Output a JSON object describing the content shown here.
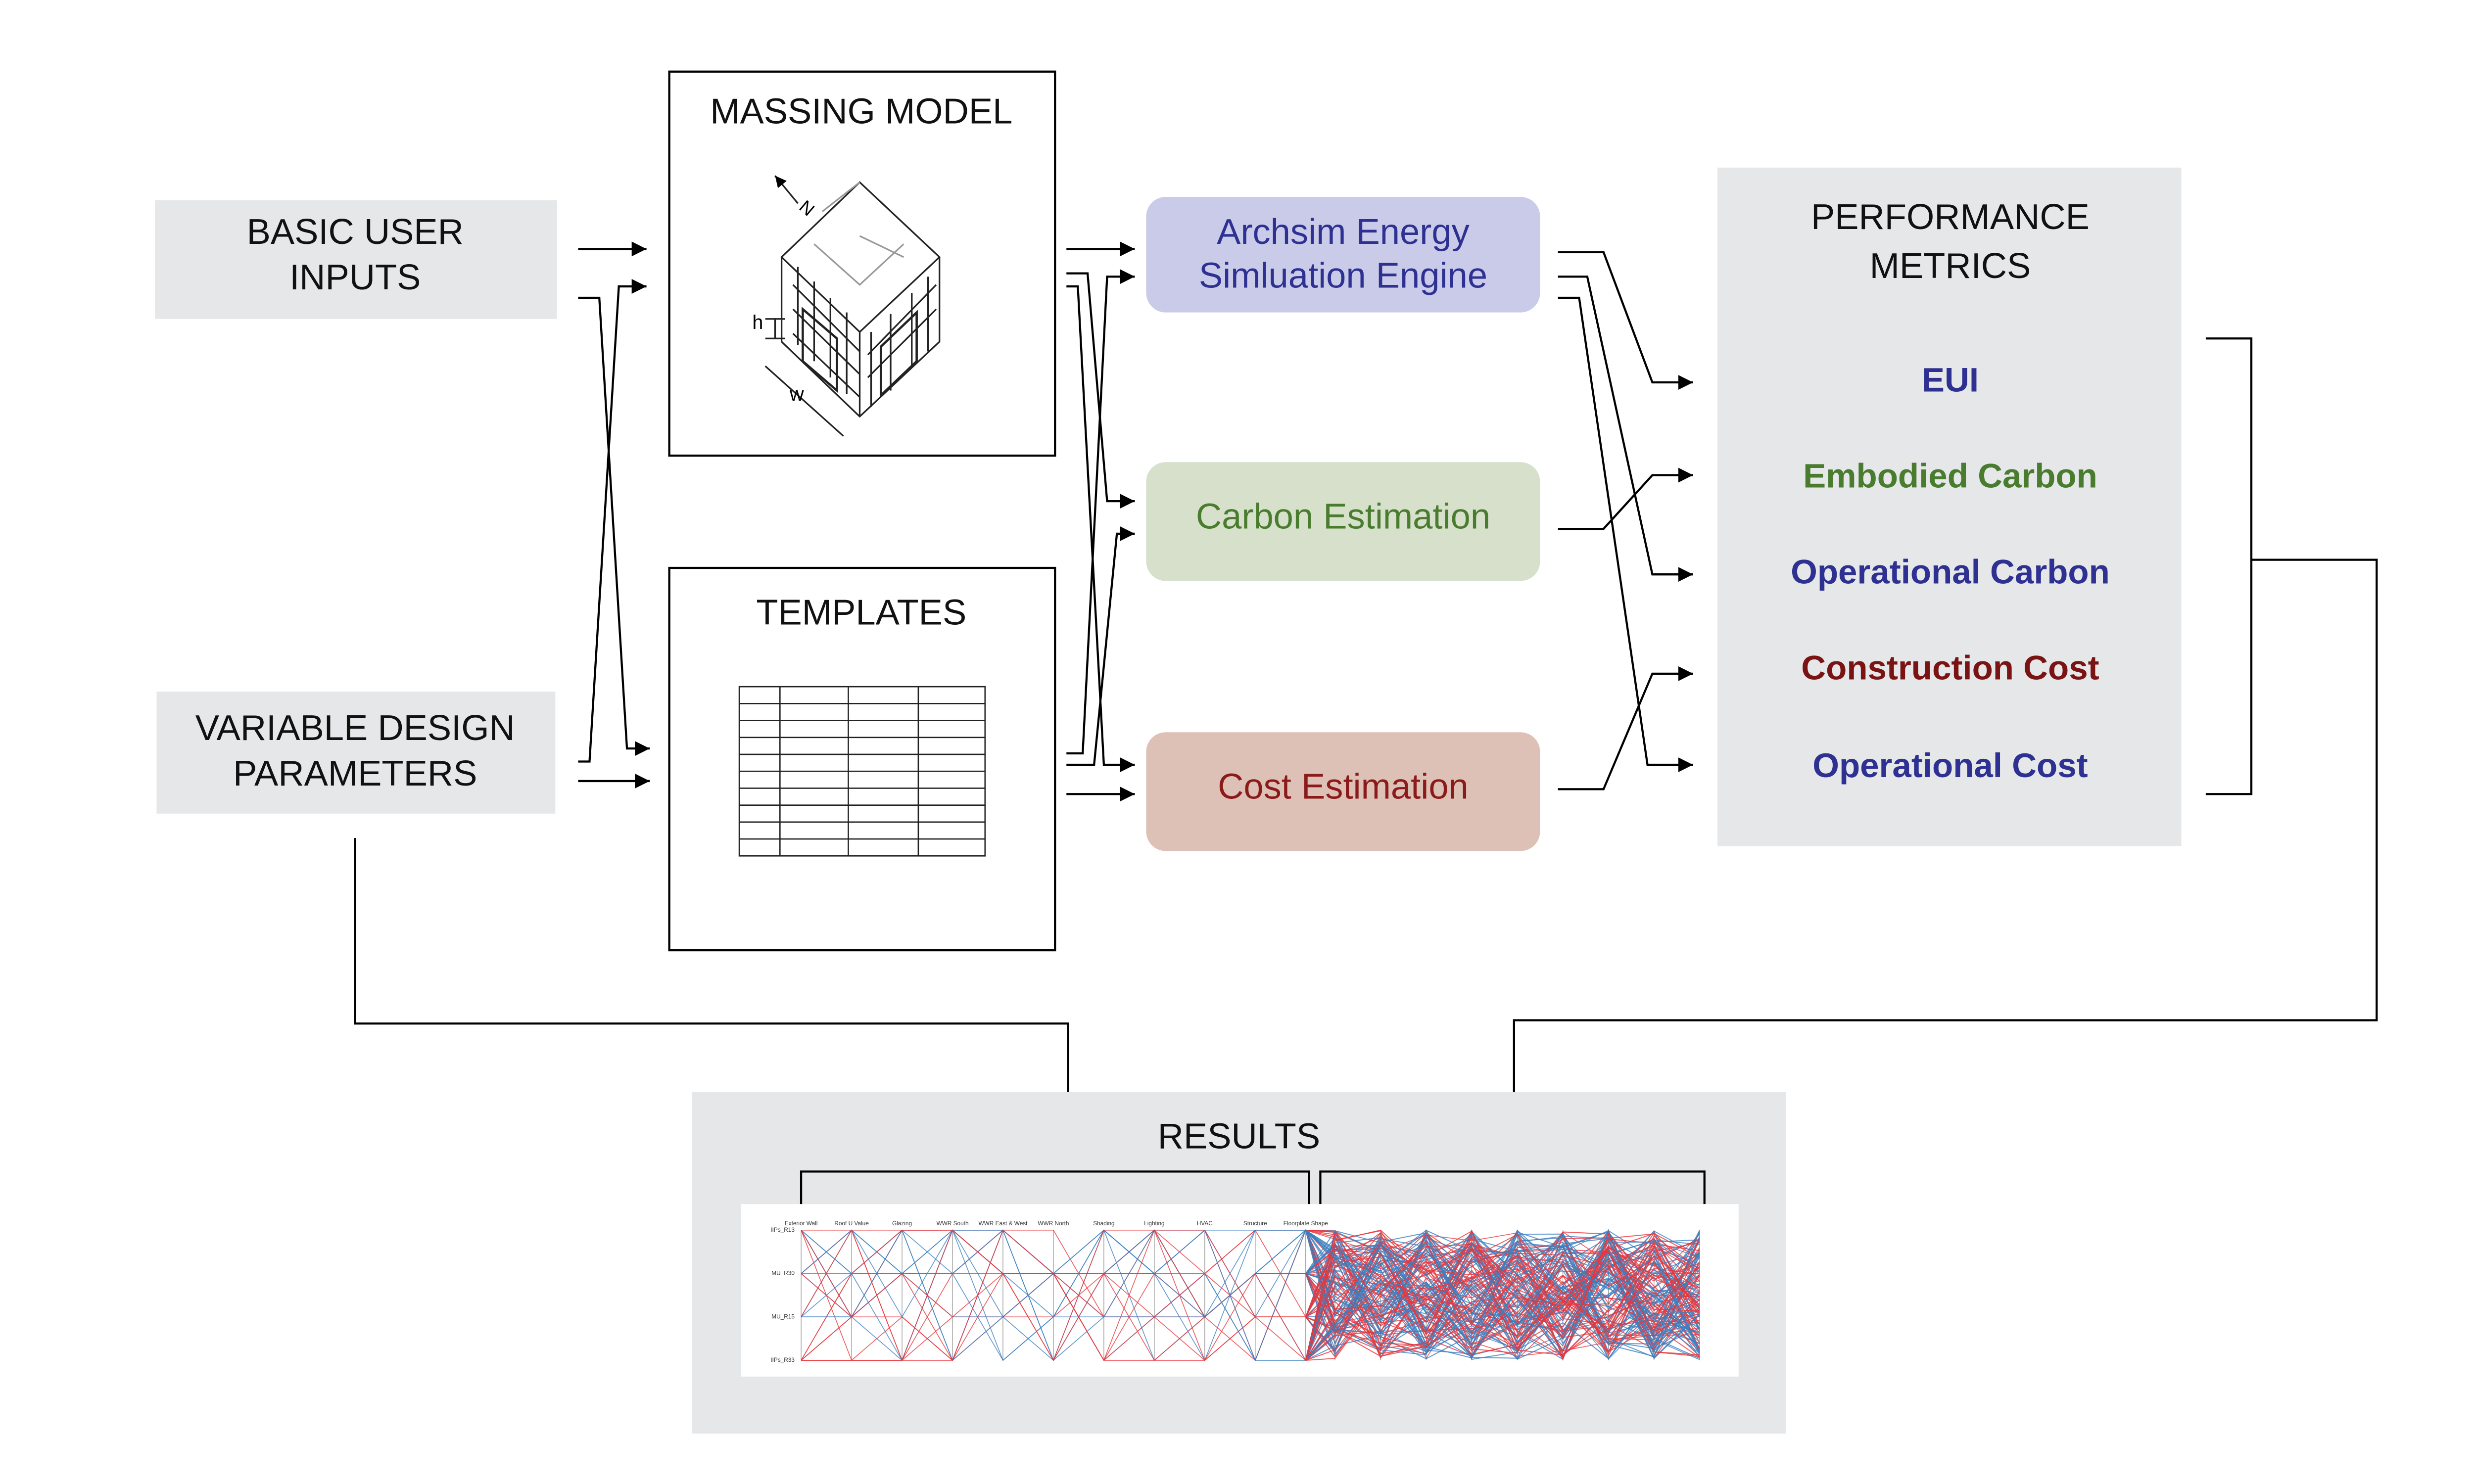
{
  "inputs": {
    "basic": [
      "BASIC USER",
      "INPUTS"
    ],
    "variable": [
      "VARIABLE DESIGN",
      "PARAMETERS"
    ]
  },
  "massing": {
    "title": "MASSING MODEL",
    "labels": [
      "N",
      "h",
      "w"
    ]
  },
  "templates": {
    "title": "TEMPLATES"
  },
  "engines": [
    [
      "Archsim Energy",
      "Simluation Engine"
    ],
    [
      "Carbon Estimation"
    ],
    [
      "Cost Estimation"
    ]
  ],
  "performance": {
    "title": [
      "PERFORMANCE",
      "METRICS"
    ],
    "metrics": [
      "EUI",
      "Embodied Carbon",
      "Operational Carbon",
      "Construction Cost",
      "Operational Cost"
    ]
  },
  "results": {
    "title": "RESULTS",
    "axes": [
      "Exterior Wall",
      "Roof U Value",
      "Glazing",
      "WWR South",
      "WWR East & West",
      "WWR North",
      "Shading",
      "Lighting",
      "HVAC",
      "Structure",
      "Floorplate Shape"
    ],
    "rows": [
      "IIPs_R13",
      "MU_R30",
      "MU_R15",
      "IIPs_R33"
    ]
  }
}
